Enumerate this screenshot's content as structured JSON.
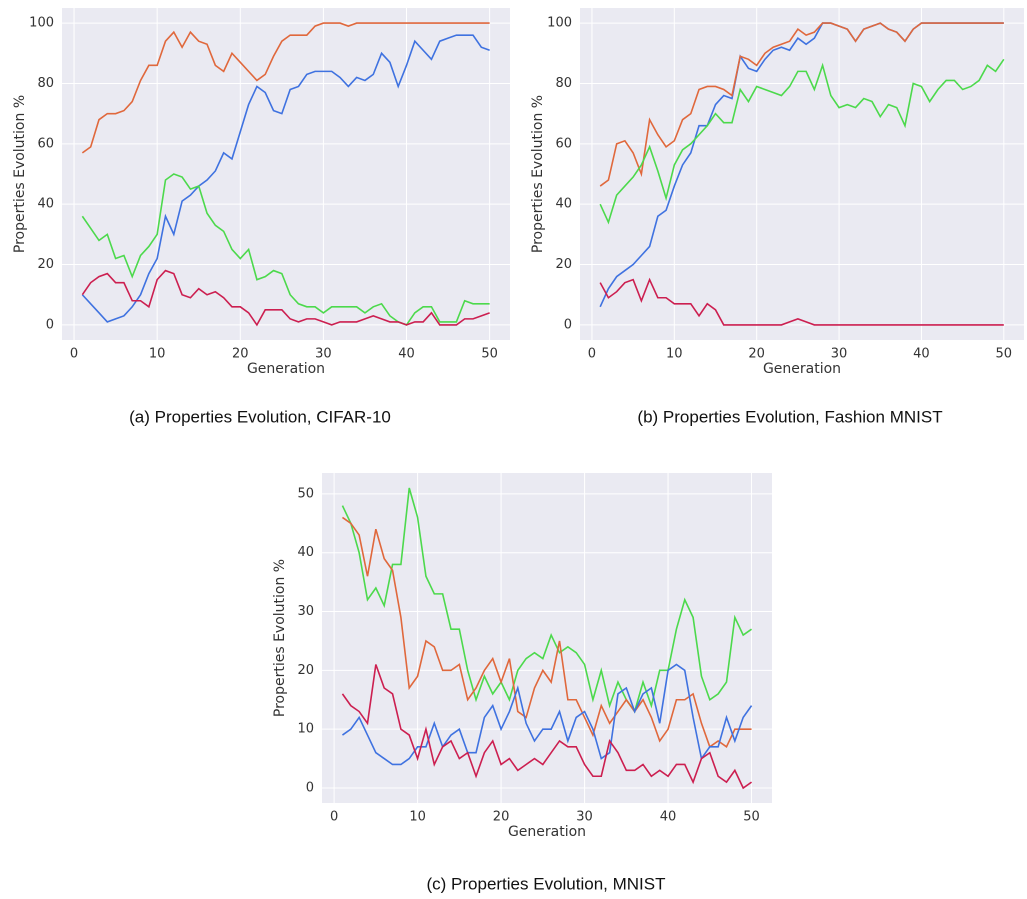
{
  "chart_data": [
    {
      "type": "line",
      "caption": "(a) Properties Evolution, CIFAR-10",
      "xlabel": "Generation",
      "ylabel": "Properties Evolution %",
      "grid": true,
      "x": [
        1,
        2,
        3,
        4,
        5,
        6,
        7,
        8,
        9,
        10,
        11,
        12,
        13,
        14,
        15,
        16,
        17,
        18,
        19,
        20,
        21,
        22,
        23,
        24,
        25,
        26,
        27,
        28,
        29,
        30,
        31,
        32,
        33,
        34,
        35,
        36,
        37,
        38,
        39,
        40,
        41,
        42,
        43,
        44,
        45,
        46,
        47,
        48,
        49,
        50
      ],
      "xlim": [
        -1.45,
        52.45
      ],
      "ylim": [
        -5,
        105
      ],
      "xticks": [
        0,
        10,
        20,
        30,
        40,
        50
      ],
      "yticks": [
        0,
        20,
        40,
        60,
        80,
        100
      ],
      "series": [
        {
          "color": "#e0683c",
          "values": [
            57,
            59,
            68,
            70,
            70,
            71,
            74,
            81,
            86,
            86,
            94,
            97,
            92,
            97,
            94,
            93,
            86,
            84,
            90,
            87,
            84,
            81,
            83,
            89,
            94,
            96,
            96,
            96,
            99,
            100,
            100,
            100,
            99,
            100,
            100,
            100,
            100,
            100,
            100,
            100,
            100,
            100,
            100,
            100,
            100,
            100,
            100,
            100,
            100,
            100
          ]
        },
        {
          "color": "#3f72e0",
          "values": [
            10,
            7,
            4,
            1,
            2,
            3,
            6,
            10,
            17,
            22,
            36,
            30,
            41,
            43,
            46,
            48,
            51,
            57,
            55,
            64,
            73,
            79,
            77,
            71,
            70,
            78,
            79,
            83,
            84,
            84,
            84,
            82,
            79,
            82,
            81,
            83,
            90,
            87,
            79,
            86,
            94,
            91,
            88,
            94,
            95,
            96,
            96,
            96,
            92,
            91
          ]
        },
        {
          "color": "#4cd94c",
          "values": [
            36,
            32,
            28,
            30,
            22,
            23,
            16,
            23,
            26,
            30,
            48,
            50,
            49,
            45,
            46,
            37,
            33,
            31,
            25,
            22,
            25,
            15,
            16,
            18,
            17,
            10,
            7,
            6,
            6,
            4,
            6,
            6,
            6,
            6,
            4,
            6,
            7,
            3,
            1,
            0,
            4,
            6,
            6,
            1,
            1,
            1,
            8,
            7,
            7,
            7
          ]
        },
        {
          "color": "#cc1f50",
          "values": [
            10,
            14,
            16,
            17,
            14,
            14,
            8,
            8,
            6,
            15,
            18,
            17,
            10,
            9,
            12,
            10,
            11,
            9,
            6,
            6,
            4,
            0,
            5,
            5,
            5,
            2,
            1,
            2,
            2,
            1,
            0,
            1,
            1,
            1,
            2,
            3,
            2,
            1,
            1,
            0,
            1,
            1,
            4,
            0,
            0,
            0,
            2,
            2,
            3,
            4
          ]
        }
      ]
    },
    {
      "type": "line",
      "caption": "(b) Properties Evolution, Fashion MNIST",
      "xlabel": "Generation",
      "ylabel": "Properties Evolution %",
      "grid": true,
      "x": [
        1,
        2,
        3,
        4,
        5,
        6,
        7,
        8,
        9,
        10,
        11,
        12,
        13,
        14,
        15,
        16,
        17,
        18,
        19,
        20,
        21,
        22,
        23,
        24,
        25,
        26,
        27,
        28,
        29,
        30,
        31,
        32,
        33,
        34,
        35,
        36,
        37,
        38,
        39,
        40,
        41,
        42,
        43,
        44,
        45,
        46,
        47,
        48,
        49,
        50
      ],
      "xlim": [
        -1.45,
        52.45
      ],
      "ylim": [
        -5,
        105
      ],
      "xticks": [
        0,
        10,
        20,
        30,
        40,
        50
      ],
      "yticks": [
        0,
        20,
        40,
        60,
        80,
        100
      ],
      "series": [
        {
          "color": "#3f72e0",
          "values": [
            6,
            12,
            16,
            18,
            20,
            23,
            26,
            36,
            38,
            46,
            53,
            57,
            66,
            66,
            73,
            76,
            75,
            89,
            85,
            84,
            88,
            91,
            92,
            91,
            95,
            93,
            95,
            100,
            100,
            99,
            98,
            94,
            98,
            99,
            100,
            98,
            97,
            94,
            98,
            100,
            100,
            100,
            100,
            100,
            100,
            100,
            100,
            100,
            100,
            100
          ]
        },
        {
          "color": "#e0683c",
          "values": [
            46,
            48,
            60,
            61,
            57,
            50,
            68,
            63,
            59,
            61,
            68,
            70,
            78,
            79,
            79,
            78,
            76,
            89,
            88,
            86,
            90,
            92,
            93,
            94,
            98,
            96,
            97,
            100,
            100,
            99,
            98,
            94,
            98,
            99,
            100,
            98,
            97,
            94,
            98,
            100,
            100,
            100,
            100,
            100,
            100,
            100,
            100,
            100,
            100,
            100
          ]
        },
        {
          "color": "#4cd94c",
          "values": [
            40,
            34,
            43,
            46,
            49,
            53,
            59,
            51,
            42,
            53,
            58,
            60,
            63,
            66,
            70,
            67,
            67,
            78,
            74,
            79,
            78,
            77,
            76,
            79,
            84,
            84,
            78,
            86,
            76,
            72,
            73,
            72,
            75,
            74,
            69,
            73,
            72,
            66,
            80,
            79,
            74,
            78,
            81,
            81,
            78,
            79,
            81,
            86,
            84,
            88
          ]
        },
        {
          "color": "#cc1f50",
          "values": [
            14,
            9,
            11,
            14,
            15,
            8,
            15,
            9,
            9,
            7,
            7,
            7,
            3,
            7,
            5,
            0,
            0,
            0,
            0,
            0,
            0,
            0,
            0,
            1,
            2,
            1,
            0,
            0,
            0,
            0,
            0,
            0,
            0,
            0,
            0,
            0,
            0,
            0,
            0,
            0,
            0,
            0,
            0,
            0,
            0,
            0,
            0,
            0,
            0,
            0
          ]
        }
      ]
    },
    {
      "type": "line",
      "caption": "(c) Properties Evolution, MNIST",
      "xlabel": "Generation",
      "ylabel": "Properties Evolution %",
      "grid": true,
      "x": [
        1,
        2,
        3,
        4,
        5,
        6,
        7,
        8,
        9,
        10,
        11,
        12,
        13,
        14,
        15,
        16,
        17,
        18,
        19,
        20,
        21,
        22,
        23,
        24,
        25,
        26,
        27,
        28,
        29,
        30,
        31,
        32,
        33,
        34,
        35,
        36,
        37,
        38,
        39,
        40,
        41,
        42,
        43,
        44,
        45,
        46,
        47,
        48,
        49,
        50
      ],
      "xlim": [
        -1.45,
        52.45
      ],
      "ylim": [
        -2.55,
        53.55
      ],
      "xticks": [
        0,
        10,
        20,
        30,
        40,
        50
      ],
      "yticks": [
        0,
        10,
        20,
        30,
        40,
        50
      ],
      "series": [
        {
          "color": "#4cd94c",
          "values": [
            48,
            45,
            40,
            32,
            34,
            31,
            38,
            38,
            51,
            46,
            36,
            33,
            33,
            27,
            27,
            20,
            15,
            19,
            16,
            18,
            15,
            20,
            22,
            23,
            22,
            26,
            23,
            24,
            23,
            21,
            15,
            20,
            14,
            18,
            15,
            13,
            18,
            14,
            20,
            20,
            27,
            32,
            29,
            19,
            15,
            16,
            18,
            29,
            26,
            27
          ]
        },
        {
          "color": "#e0683c",
          "values": [
            46,
            45,
            43,
            36,
            44,
            39,
            37,
            29,
            17,
            19,
            25,
            24,
            20,
            20,
            21,
            15,
            17,
            20,
            22,
            18,
            22,
            13,
            12,
            17,
            20,
            18,
            25,
            15,
            15,
            12,
            9,
            14,
            11,
            13,
            15,
            13,
            15,
            12,
            8,
            10,
            15,
            15,
            16,
            11,
            7,
            8,
            7,
            10,
            10,
            10
          ]
        },
        {
          "color": "#3f72e0",
          "values": [
            9,
            10,
            12,
            9,
            6,
            5,
            4,
            4,
            5,
            7,
            7,
            11,
            7,
            9,
            10,
            6,
            6,
            12,
            14,
            10,
            13,
            17,
            11,
            8,
            10,
            10,
            13,
            8,
            12,
            13,
            10,
            5,
            6,
            16,
            17,
            13,
            16,
            17,
            11,
            20,
            21,
            20,
            12,
            5,
            7,
            7,
            12,
            8,
            12,
            14
          ]
        },
        {
          "color": "#cc1f50",
          "values": [
            16,
            14,
            13,
            11,
            21,
            17,
            16,
            10,
            9,
            5,
            10,
            4,
            7,
            8,
            5,
            6,
            2,
            6,
            8,
            4,
            5,
            3,
            4,
            5,
            4,
            6,
            8,
            7,
            7,
            4,
            2,
            2,
            8,
            6,
            3,
            3,
            4,
            2,
            3,
            2,
            4,
            4,
            1,
            5,
            6,
            2,
            1,
            3,
            0,
            1
          ]
        }
      ]
    }
  ]
}
